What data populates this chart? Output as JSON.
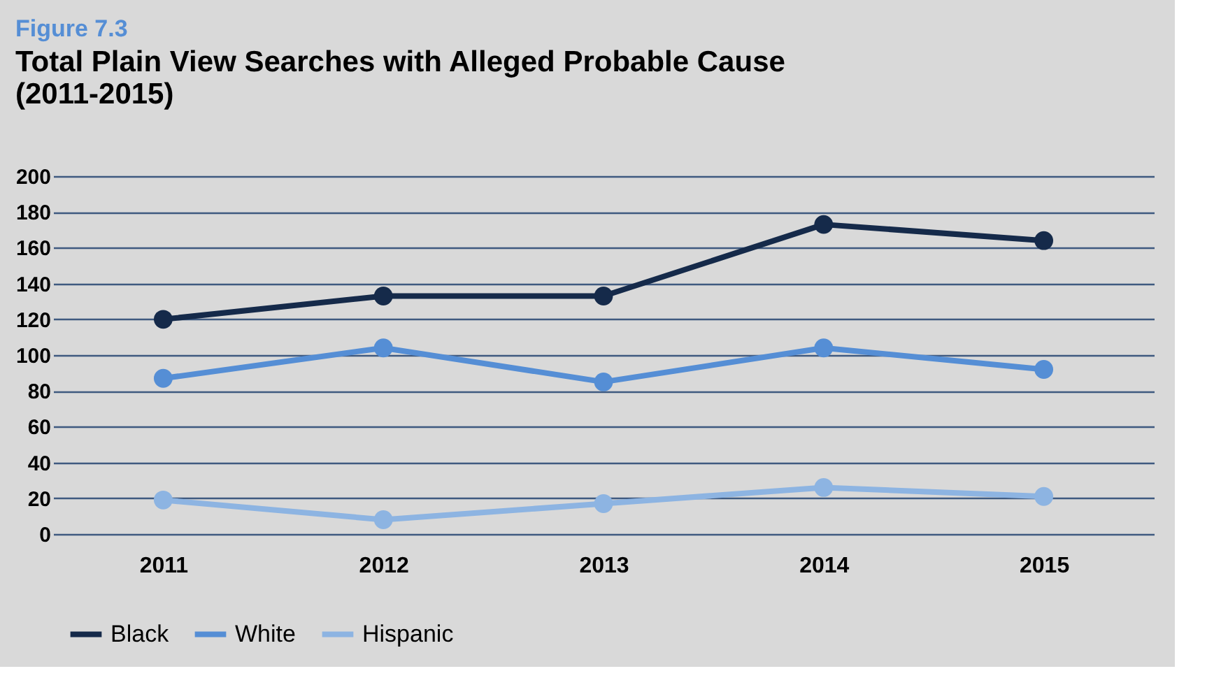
{
  "chart_data": {
    "type": "line",
    "title": "Total Plain View Searches with Alleged Probable Cause (2011-2015)",
    "annotations": [
      "Figure 7.3"
    ],
    "categories": [
      "2011",
      "2012",
      "2013",
      "2014",
      "2015"
    ],
    "series": [
      {
        "name": "Black",
        "color": "#152a4a",
        "values": [
          120,
          133,
          133,
          173,
          164
        ]
      },
      {
        "name": "White",
        "color": "#558ed5",
        "values": [
          87,
          104,
          85,
          104,
          92
        ]
      },
      {
        "name": "Hispanic",
        "color": "#8db4e2",
        "values": [
          19,
          8,
          17,
          26,
          21
        ]
      }
    ],
    "ylim": [
      0,
      200
    ],
    "yticks": [
      0,
      20,
      40,
      60,
      80,
      100,
      120,
      140,
      160,
      180,
      200
    ],
    "grid": "y",
    "legend": "bottom",
    "marker": "circle",
    "line_style": "solid"
  }
}
